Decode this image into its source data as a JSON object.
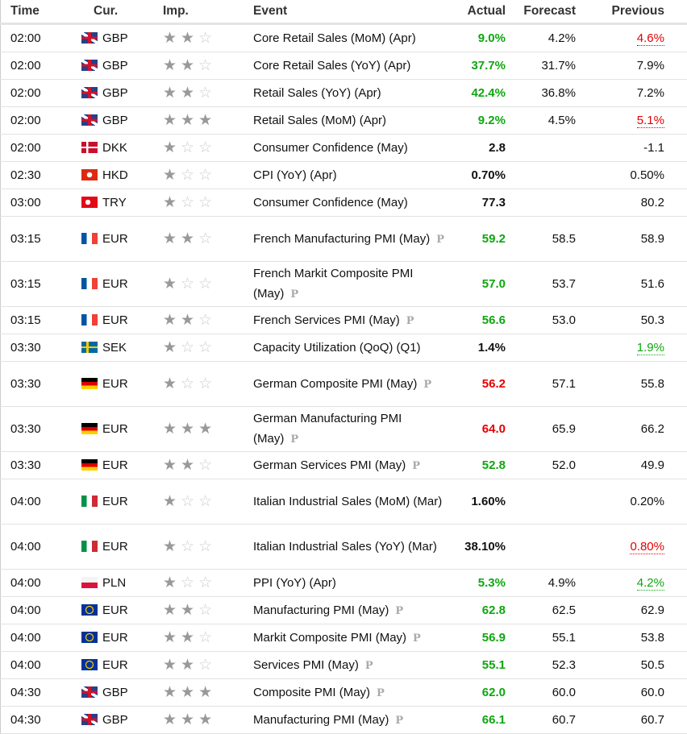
{
  "headers": {
    "time": "Time",
    "cur": "Cur.",
    "imp": "Imp.",
    "event": "Event",
    "actual": "Actual",
    "forecast": "Forecast",
    "previous": "Previous"
  },
  "colors": {
    "positive": "#0fa60f",
    "negative": "#e60000"
  },
  "rows": [
    {
      "time": "02:00",
      "flag": "gb",
      "cur": "GBP",
      "stars": 2,
      "event": "Core Retail Sales (MoM) (Apr)",
      "p": false,
      "actual": "9.0%",
      "ac": "green",
      "forecast": "4.2%",
      "previous": "4.6%",
      "pc": "red"
    },
    {
      "time": "02:00",
      "flag": "gb",
      "cur": "GBP",
      "stars": 2,
      "event": "Core Retail Sales (YoY) (Apr)",
      "p": false,
      "actual": "37.7%",
      "ac": "green",
      "forecast": "31.7%",
      "previous": "7.9%",
      "pc": ""
    },
    {
      "time": "02:00",
      "flag": "gb",
      "cur": "GBP",
      "stars": 2,
      "event": "Retail Sales (YoY) (Apr)",
      "p": false,
      "actual": "42.4%",
      "ac": "green",
      "forecast": "36.8%",
      "previous": "7.2%",
      "pc": ""
    },
    {
      "time": "02:00",
      "flag": "gb",
      "cur": "GBP",
      "stars": 3,
      "event": "Retail Sales (MoM) (Apr)",
      "p": false,
      "actual": "9.2%",
      "ac": "green",
      "forecast": "4.5%",
      "previous": "5.1%",
      "pc": "red"
    },
    {
      "time": "02:00",
      "flag": "dk",
      "cur": "DKK",
      "stars": 1,
      "event": "Consumer Confidence (May)",
      "p": false,
      "actual": "2.8",
      "ac": "",
      "forecast": "",
      "previous": "-1.1",
      "pc": ""
    },
    {
      "time": "02:30",
      "flag": "hk",
      "cur": "HKD",
      "stars": 1,
      "event": "CPI (YoY) (Apr)",
      "p": false,
      "actual": "0.70%",
      "ac": "",
      "forecast": "",
      "previous": "0.50%",
      "pc": ""
    },
    {
      "time": "03:00",
      "flag": "tr",
      "cur": "TRY",
      "stars": 1,
      "event": "Consumer Confidence (May)",
      "p": false,
      "actual": "77.3",
      "ac": "",
      "forecast": "",
      "previous": "80.2",
      "pc": ""
    },
    {
      "time": "03:15",
      "flag": "fr",
      "cur": "EUR",
      "stars": 2,
      "event": "French Manufacturing PMI (May)",
      "p": true,
      "tall": true,
      "actual": "59.2",
      "ac": "green",
      "forecast": "58.5",
      "previous": "58.9",
      "pc": ""
    },
    {
      "time": "03:15",
      "flag": "fr",
      "cur": "EUR",
      "stars": 1,
      "event": "French Markit Composite PMI (May)",
      "p": true,
      "tall": true,
      "actual": "57.0",
      "ac": "green",
      "forecast": "53.7",
      "previous": "51.6",
      "pc": ""
    },
    {
      "time": "03:15",
      "flag": "fr",
      "cur": "EUR",
      "stars": 2,
      "event": "French Services PMI (May)",
      "p": true,
      "actual": "56.6",
      "ac": "green",
      "forecast": "53.0",
      "previous": "50.3",
      "pc": ""
    },
    {
      "time": "03:30",
      "flag": "se",
      "cur": "SEK",
      "stars": 1,
      "event": "Capacity Utilization (QoQ) (Q1)",
      "p": false,
      "actual": "1.4%",
      "ac": "",
      "forecast": "",
      "previous": "1.9%",
      "pc": "green"
    },
    {
      "time": "03:30",
      "flag": "de",
      "cur": "EUR",
      "stars": 1,
      "event": "German Composite PMI (May)",
      "p": true,
      "tall": true,
      "actual": "56.2",
      "ac": "red",
      "forecast": "57.1",
      "previous": "55.8",
      "pc": ""
    },
    {
      "time": "03:30",
      "flag": "de",
      "cur": "EUR",
      "stars": 3,
      "event": "German Manufacturing PMI (May)",
      "p": true,
      "tall": true,
      "actual": "64.0",
      "ac": "red",
      "forecast": "65.9",
      "previous": "66.2",
      "pc": ""
    },
    {
      "time": "03:30",
      "flag": "de",
      "cur": "EUR",
      "stars": 2,
      "event": "German Services PMI (May)",
      "p": true,
      "actual": "52.8",
      "ac": "green",
      "forecast": "52.0",
      "previous": "49.9",
      "pc": ""
    },
    {
      "time": "04:00",
      "flag": "it",
      "cur": "EUR",
      "stars": 1,
      "event": "Italian Industrial Sales (MoM) (Mar)",
      "p": false,
      "tall": true,
      "actual": "1.60%",
      "ac": "",
      "forecast": "",
      "previous": "0.20%",
      "pc": ""
    },
    {
      "time": "04:00",
      "flag": "it",
      "cur": "EUR",
      "stars": 1,
      "event": "Italian Industrial Sales (YoY) (Mar)",
      "p": false,
      "tall": true,
      "actual": "38.10%",
      "ac": "",
      "forecast": "",
      "previous": "0.80%",
      "pc": "red"
    },
    {
      "time": "04:00",
      "flag": "pl",
      "cur": "PLN",
      "stars": 1,
      "event": "PPI (YoY) (Apr)",
      "p": false,
      "actual": "5.3%",
      "ac": "green",
      "forecast": "4.9%",
      "previous": "4.2%",
      "pc": "green"
    },
    {
      "time": "04:00",
      "flag": "eu",
      "cur": "EUR",
      "stars": 2,
      "event": "Manufacturing PMI (May)",
      "p": true,
      "actual": "62.8",
      "ac": "green",
      "forecast": "62.5",
      "previous": "62.9",
      "pc": ""
    },
    {
      "time": "04:00",
      "flag": "eu",
      "cur": "EUR",
      "stars": 2,
      "event": "Markit Composite PMI (May)",
      "p": true,
      "actual": "56.9",
      "ac": "green",
      "forecast": "55.1",
      "previous": "53.8",
      "pc": ""
    },
    {
      "time": "04:00",
      "flag": "eu",
      "cur": "EUR",
      "stars": 2,
      "event": "Services PMI (May)",
      "p": true,
      "actual": "55.1",
      "ac": "green",
      "forecast": "52.3",
      "previous": "50.5",
      "pc": ""
    },
    {
      "time": "04:30",
      "flag": "gb",
      "cur": "GBP",
      "stars": 3,
      "event": "Composite PMI (May)",
      "p": true,
      "actual": "62.0",
      "ac": "green",
      "forecast": "60.0",
      "previous": "60.0",
      "pc": ""
    },
    {
      "time": "04:30",
      "flag": "gb",
      "cur": "GBP",
      "stars": 3,
      "event": "Manufacturing PMI (May)",
      "p": true,
      "actual": "66.1",
      "ac": "green",
      "forecast": "60.7",
      "previous": "60.7",
      "pc": ""
    }
  ]
}
